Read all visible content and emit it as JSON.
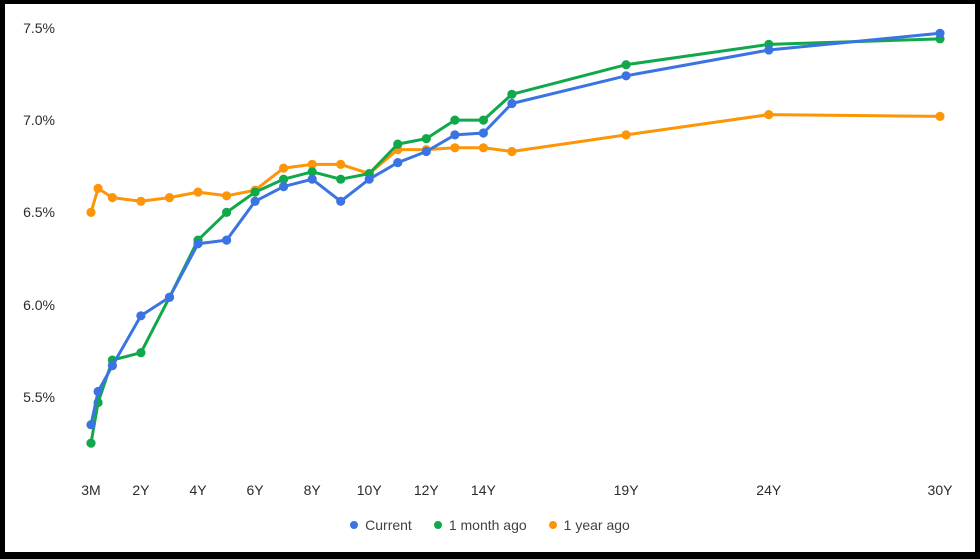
{
  "chart_data": {
    "type": "line",
    "title": "",
    "xlabel": "",
    "ylabel": "",
    "grid": false,
    "legend_position": "bottom-center",
    "x_unit": "maturity in years",
    "x": [
      0.25,
      0.5,
      1,
      2,
      3,
      4,
      5,
      6,
      7,
      8,
      9,
      10,
      11,
      12,
      13,
      14,
      15,
      19,
      24,
      30
    ],
    "series": [
      {
        "name": "Current",
        "color": "#3b74e2",
        "values": [
          5.35,
          5.53,
          5.67,
          5.94,
          6.04,
          6.33,
          6.35,
          6.56,
          6.64,
          6.68,
          6.56,
          6.68,
          6.77,
          6.83,
          6.92,
          6.93,
          7.09,
          7.24,
          7.38,
          7.47
        ]
      },
      {
        "name": "1 month ago",
        "color": "#10a84a",
        "values": [
          5.25,
          5.47,
          5.7,
          5.74,
          6.04,
          6.35,
          6.5,
          6.61,
          6.68,
          6.72,
          6.68,
          6.71,
          6.87,
          6.9,
          7.0,
          7.0,
          7.14,
          7.3,
          7.41,
          7.44
        ]
      },
      {
        "name": "1 year ago",
        "color": "#fc9608",
        "values": [
          6.5,
          6.63,
          6.58,
          6.56,
          6.58,
          6.61,
          6.59,
          6.62,
          6.74,
          6.76,
          6.76,
          6.71,
          6.84,
          6.84,
          6.85,
          6.85,
          6.83,
          6.92,
          7.03,
          7.02
        ]
      }
    ],
    "x_axis": {
      "min": 0.25,
      "max": 30,
      "ticks": [
        {
          "value": 0.25,
          "label": "3M"
        },
        {
          "value": 2,
          "label": "2Y"
        },
        {
          "value": 4,
          "label": "4Y"
        },
        {
          "value": 6,
          "label": "6Y"
        },
        {
          "value": 8,
          "label": "8Y"
        },
        {
          "value": 10,
          "label": "10Y"
        },
        {
          "value": 12,
          "label": "12Y"
        },
        {
          "value": 14,
          "label": "14Y"
        },
        {
          "value": 19,
          "label": "19Y"
        },
        {
          "value": 24,
          "label": "24Y"
        },
        {
          "value": 30,
          "label": "30Y"
        }
      ]
    },
    "y_axis": {
      "min": 5.5,
      "max": 7.5,
      "ticks": [
        {
          "value": 5.5,
          "label": "5.5%"
        },
        {
          "value": 6.0,
          "label": "6.0%"
        },
        {
          "value": 6.5,
          "label": "6.5%"
        },
        {
          "value": 7.0,
          "label": "7.0%"
        },
        {
          "value": 7.5,
          "label": "7.5%"
        }
      ]
    }
  }
}
